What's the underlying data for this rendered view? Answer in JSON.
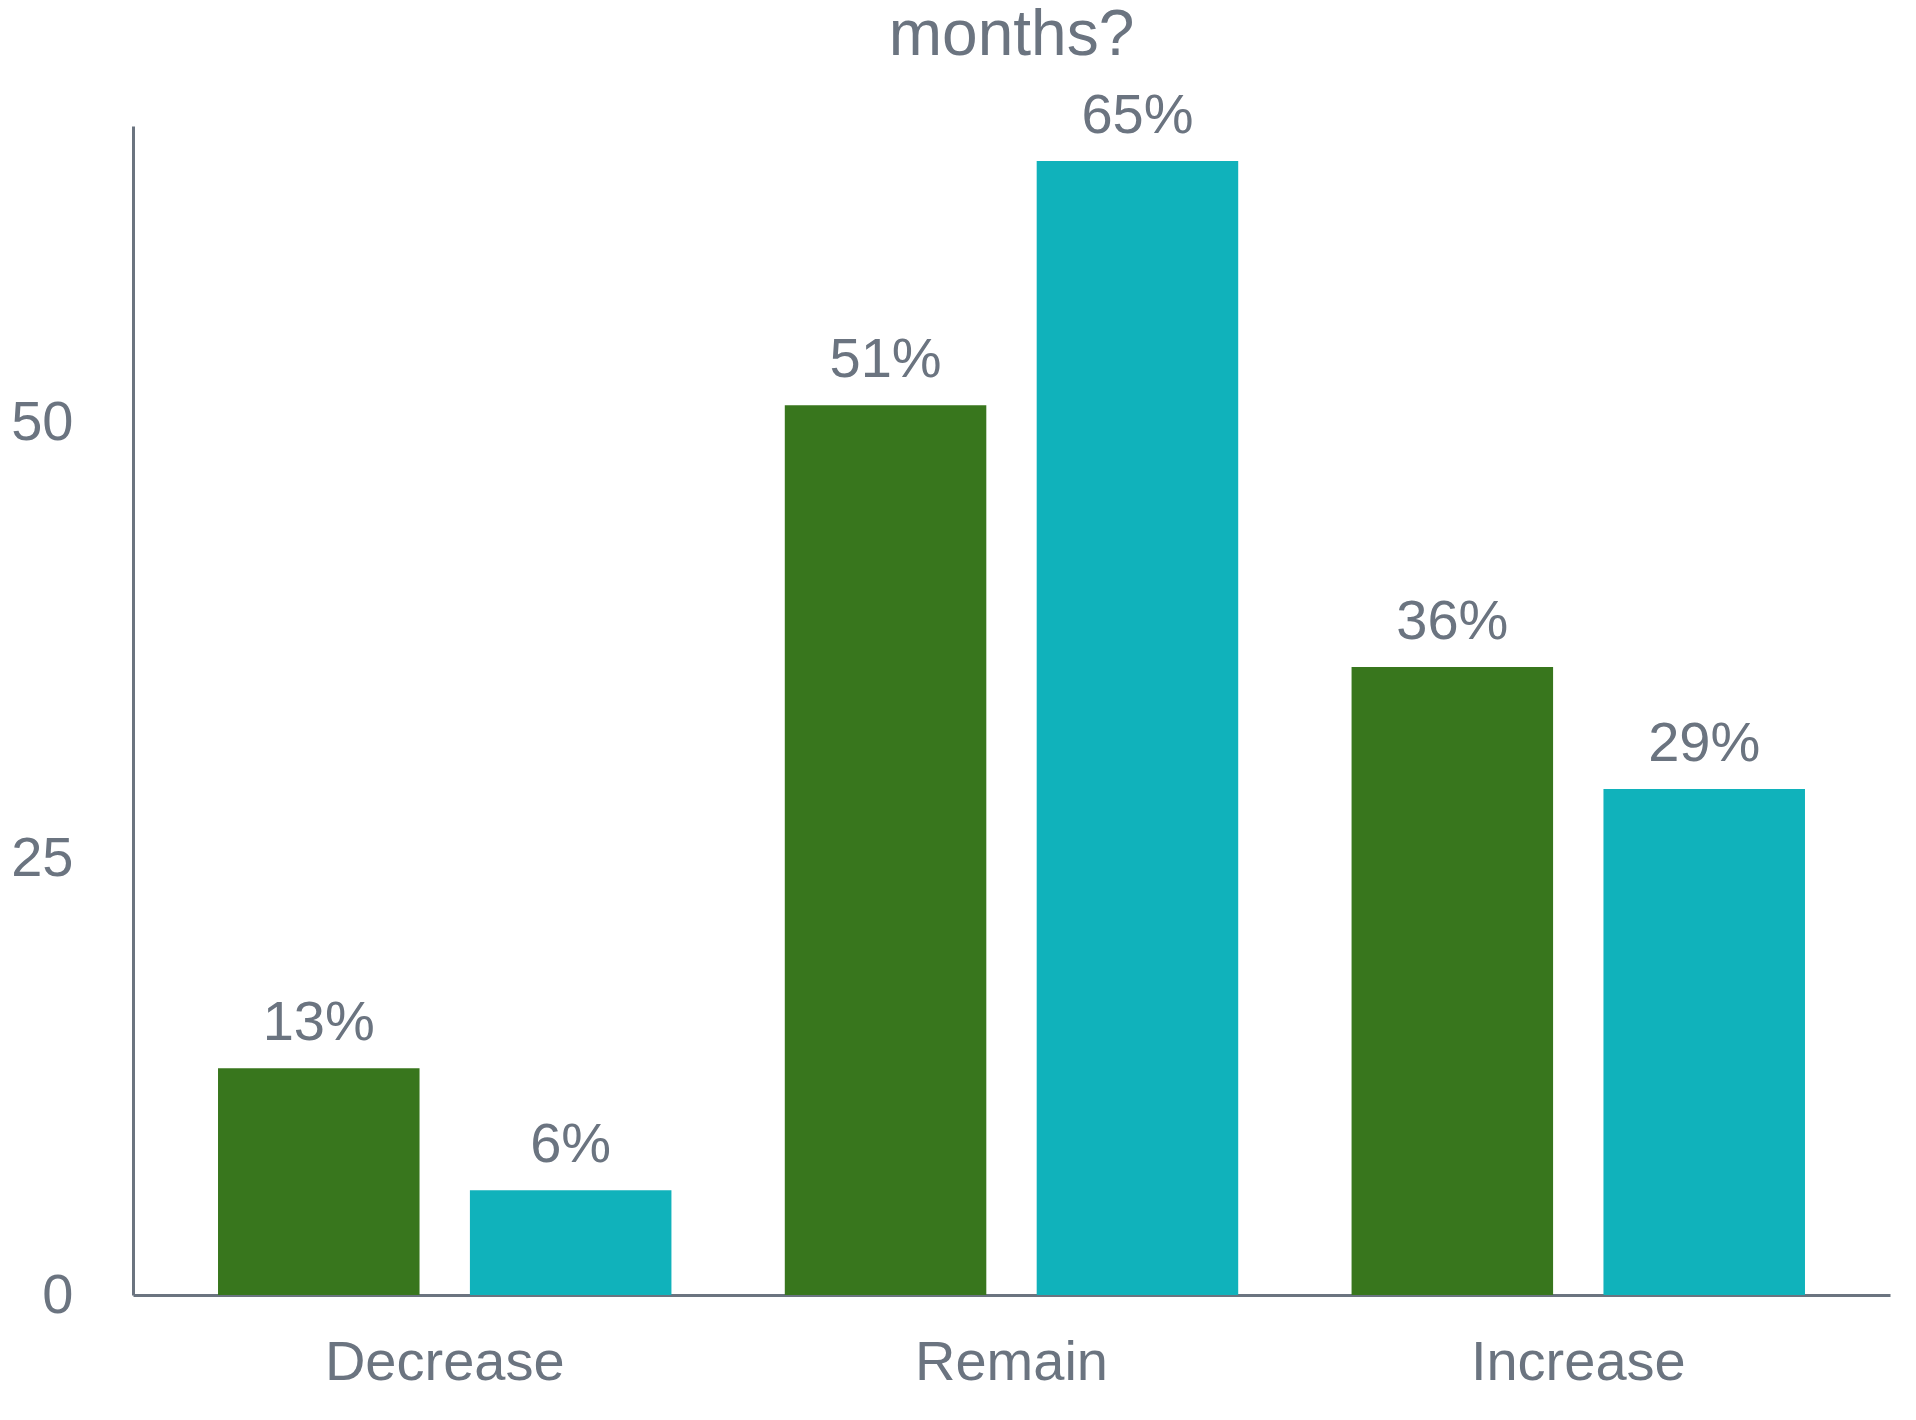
{
  "chart_data": {
    "type": "bar",
    "title": "months?",
    "categories": [
      "Decrease",
      "Remain",
      "Increase"
    ],
    "series": [
      {
        "color": "#38761d",
        "values": [
          13,
          51,
          36
        ],
        "value_labels": [
          "13%",
          "51%",
          "36%"
        ]
      },
      {
        "color": "#10b2bb",
        "values": [
          6,
          65,
          29
        ],
        "value_labels": [
          "6%",
          "65%",
          "29%"
        ]
      }
    ],
    "ylim": [
      0,
      67
    ],
    "yticks": [
      0,
      25,
      50
    ],
    "grid": false,
    "legend": false
  }
}
